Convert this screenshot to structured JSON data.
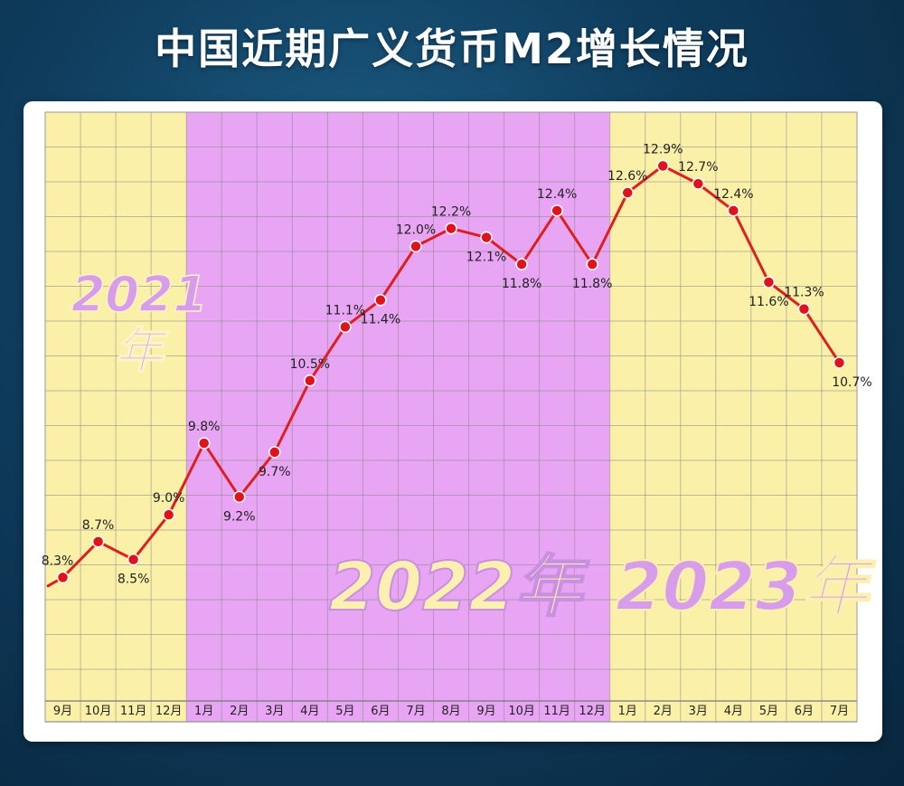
{
  "title": "中国近期广义货币M2增长情况",
  "chart_data": {
    "type": "line",
    "title": "中国近期广义货币M2增长情况",
    "categories": [
      "9月",
      "10月",
      "11月",
      "12月",
      "1月",
      "2月",
      "3月",
      "4月",
      "5月",
      "6月",
      "7月",
      "8月",
      "9月",
      "10月",
      "11月",
      "12月",
      "1月",
      "2月",
      "3月",
      "4月",
      "5月",
      "6月",
      "7月"
    ],
    "series": [
      {
        "values": [
          8.3,
          8.7,
          8.5,
          9.0,
          9.8,
          9.2,
          9.7,
          10.5,
          11.1,
          11.4,
          12.0,
          12.2,
          12.1,
          11.8,
          12.4,
          11.8,
          12.6,
          12.9,
          12.7,
          12.4,
          11.6,
          11.3,
          10.7
        ],
        "labels": [
          "8.3%",
          "8.7%",
          "8.5%",
          "9.0%",
          "9.8%",
          "9.2%",
          "9.7%",
          "10.5%",
          "11.1%",
          "11.4%",
          "12.0%",
          "12.2%",
          "12.1%",
          "11.8%",
          "12.4%",
          "11.8%",
          "12.6%",
          "12.9%",
          "12.7%",
          "12.4%",
          "11.6%",
          "11.3%",
          "10.7%"
        ]
      }
    ],
    "year_bands": [
      {
        "label": "2021年",
        "start": 0,
        "end": 3,
        "color": "#fbf0a8"
      },
      {
        "label": "2022年",
        "start": 4,
        "end": 15,
        "color": "#e7a5f3"
      },
      {
        "label": "2023年",
        "start": 16,
        "end": 22,
        "color": "#fbf0a8"
      }
    ],
    "line_color": "#dd1f1f",
    "marker_color": "#e0131b",
    "grid": true,
    "ylim": [
      7.0,
      13.5
    ]
  }
}
